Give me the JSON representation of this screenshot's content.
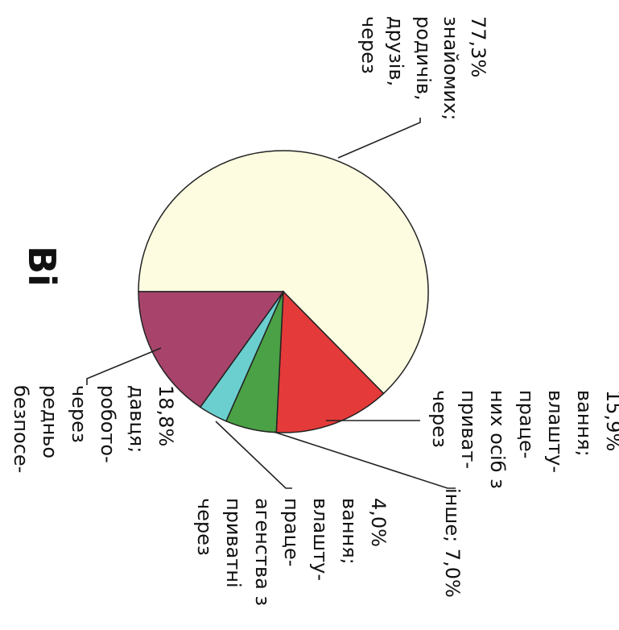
{
  "chart_data": {
    "type": "pie",
    "title": "Bi",
    "series": [
      {
        "name": "через друзів, родичів, знайомих",
        "value": 77.3,
        "color": "#fdfce0",
        "label_lines": [
          "через",
          "друзів,",
          "родичів,",
          "знайомих;",
          "77,3%"
        ]
      },
      {
        "name": "через приватних осіб з працевлаштування",
        "value": 15.9,
        "color": "#e53a3a",
        "label_lines": [
          "через",
          "приват-",
          "них осіб з",
          "праце-",
          "влашту-",
          "вання;",
          "15,9%"
        ]
      },
      {
        "name": "інше",
        "value": 7.0,
        "color": "#4ba145",
        "label_lines": [
          "інше; 7,0%"
        ]
      },
      {
        "name": "через приватні агенства з працевлаштування",
        "value": 4.0,
        "color": "#6ccfcf",
        "label_lines": [
          "через",
          "приватні",
          "агенства з",
          "праце-",
          "влашту-",
          "вання;",
          "4,0%"
        ]
      },
      {
        "name": "безпосередньо через роботодавця",
        "value": 18.8,
        "color": "#a8446b",
        "label_lines": [
          "безпосе-",
          "редньо",
          "через",
          "робото-",
          "давця;",
          "18,8%"
        ]
      }
    ]
  }
}
